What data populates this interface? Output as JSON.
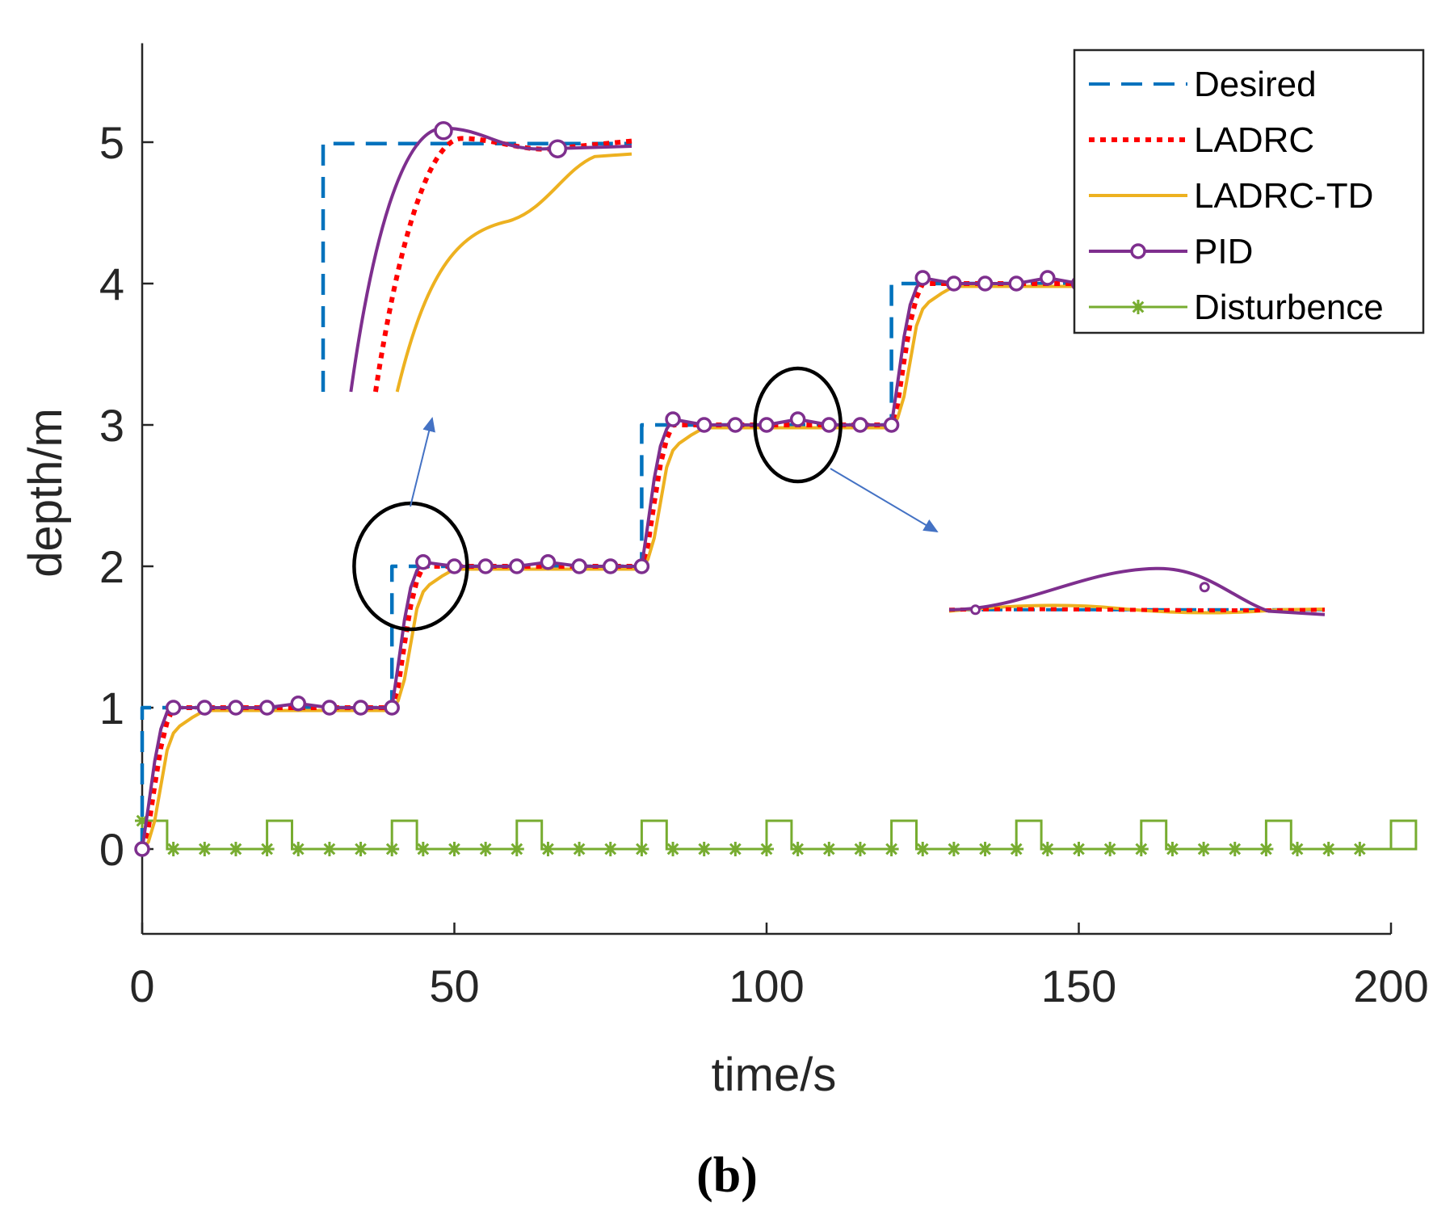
{
  "chart_data": {
    "type": "line",
    "panel_label": "(b)",
    "xlabel": "time/s",
    "ylabel": "depth/m",
    "xlim": [
      0,
      200
    ],
    "ylim": [
      -0.6,
      5.7
    ],
    "xticks": [
      0,
      50,
      100,
      150,
      200
    ],
    "yticks": [
      0,
      1,
      2,
      3,
      4,
      5
    ],
    "legend_position": "top-right",
    "grid": false,
    "series": [
      {
        "name": "Desired",
        "style": "dashed",
        "color": "#0072BD",
        "marker": "none",
        "x": [
          0,
          0,
          40,
          40,
          80,
          80,
          120,
          120,
          200
        ],
        "y": [
          0,
          1,
          1,
          2,
          2,
          3,
          3,
          4,
          4
        ]
      },
      {
        "name": "LADRC",
        "style": "dotted",
        "color": "#FF0000",
        "marker": "none",
        "x": [
          0,
          1,
          2,
          3,
          4,
          5,
          6,
          40,
          41,
          42,
          43,
          44,
          45,
          46,
          80,
          81,
          82,
          83,
          84,
          85,
          86,
          120,
          121,
          122,
          123,
          124,
          125,
          126,
          200
        ],
        "y": [
          0,
          0.15,
          0.45,
          0.72,
          0.9,
          1.0,
          1.0,
          1.0,
          1.15,
          1.45,
          1.72,
          1.9,
          2.0,
          2.0,
          2.0,
          2.15,
          2.45,
          2.72,
          2.9,
          3.0,
          3.0,
          3.0,
          3.15,
          3.45,
          3.72,
          3.9,
          4.0,
          4.0,
          4.0
        ]
      },
      {
        "name": "LADRC-TD",
        "style": "solid",
        "color": "#EDB120",
        "marker": "none",
        "x": [
          0,
          1,
          2,
          3,
          4,
          5,
          6,
          8,
          10,
          40,
          41,
          42,
          43,
          44,
          45,
          46,
          48,
          50,
          80,
          81,
          82,
          83,
          84,
          85,
          86,
          88,
          90,
          120,
          121,
          122,
          123,
          124,
          125,
          126,
          128,
          130,
          200
        ],
        "y": [
          0,
          0.05,
          0.2,
          0.45,
          0.7,
          0.82,
          0.87,
          0.93,
          0.98,
          0.98,
          1.05,
          1.2,
          1.45,
          1.7,
          1.82,
          1.87,
          1.93,
          1.98,
          1.98,
          2.05,
          2.2,
          2.45,
          2.7,
          2.82,
          2.87,
          2.93,
          2.98,
          2.98,
          3.05,
          3.2,
          3.45,
          3.7,
          3.82,
          3.87,
          3.93,
          3.98,
          3.98
        ]
      },
      {
        "name": "PID",
        "style": "solid",
        "color": "#7E2F8E",
        "marker": "circle",
        "x": [
          0,
          1,
          2,
          3,
          4,
          5,
          10,
          15,
          20,
          25,
          30,
          35,
          40,
          41,
          42,
          43,
          44,
          45,
          50,
          55,
          60,
          65,
          70,
          75,
          80,
          81,
          82,
          83,
          84,
          85,
          90,
          95,
          100,
          105,
          110,
          115,
          120,
          121,
          122,
          123,
          124,
          125,
          130,
          135,
          140,
          145,
          150
        ],
        "y": [
          0,
          0.3,
          0.62,
          0.85,
          0.97,
          1.0,
          1.0,
          1.0,
          1.0,
          1.03,
          1.0,
          1.0,
          1.0,
          1.3,
          1.62,
          1.85,
          1.97,
          2.03,
          2.0,
          2.0,
          2.0,
          2.03,
          2.0,
          2.0,
          2.0,
          2.3,
          2.62,
          2.85,
          2.97,
          3.04,
          3.0,
          3.0,
          3.0,
          3.04,
          3.0,
          3.0,
          3.0,
          3.3,
          3.62,
          3.85,
          3.97,
          4.04,
          4.0,
          4.0,
          4.0,
          4.04,
          4.0
        ]
      },
      {
        "name": "Disturbence",
        "style": "solid",
        "color": "#77AC30",
        "marker": "asterisk",
        "pulse_period": 20,
        "pulse_width": 4,
        "pulse_height": 0.2,
        "x_range": [
          0,
          200
        ]
      }
    ],
    "annotations": [
      {
        "type": "ellipse",
        "center": [
          43,
          2.0
        ],
        "note": "zoomed",
        "color": "#000000"
      },
      {
        "type": "ellipse",
        "center": [
          105,
          3.0
        ],
        "note": "zoomed",
        "color": "#000000"
      },
      {
        "type": "arrow",
        "color": "#4472C4"
      },
      {
        "type": "arrow",
        "color": "#4472C4"
      }
    ]
  }
}
